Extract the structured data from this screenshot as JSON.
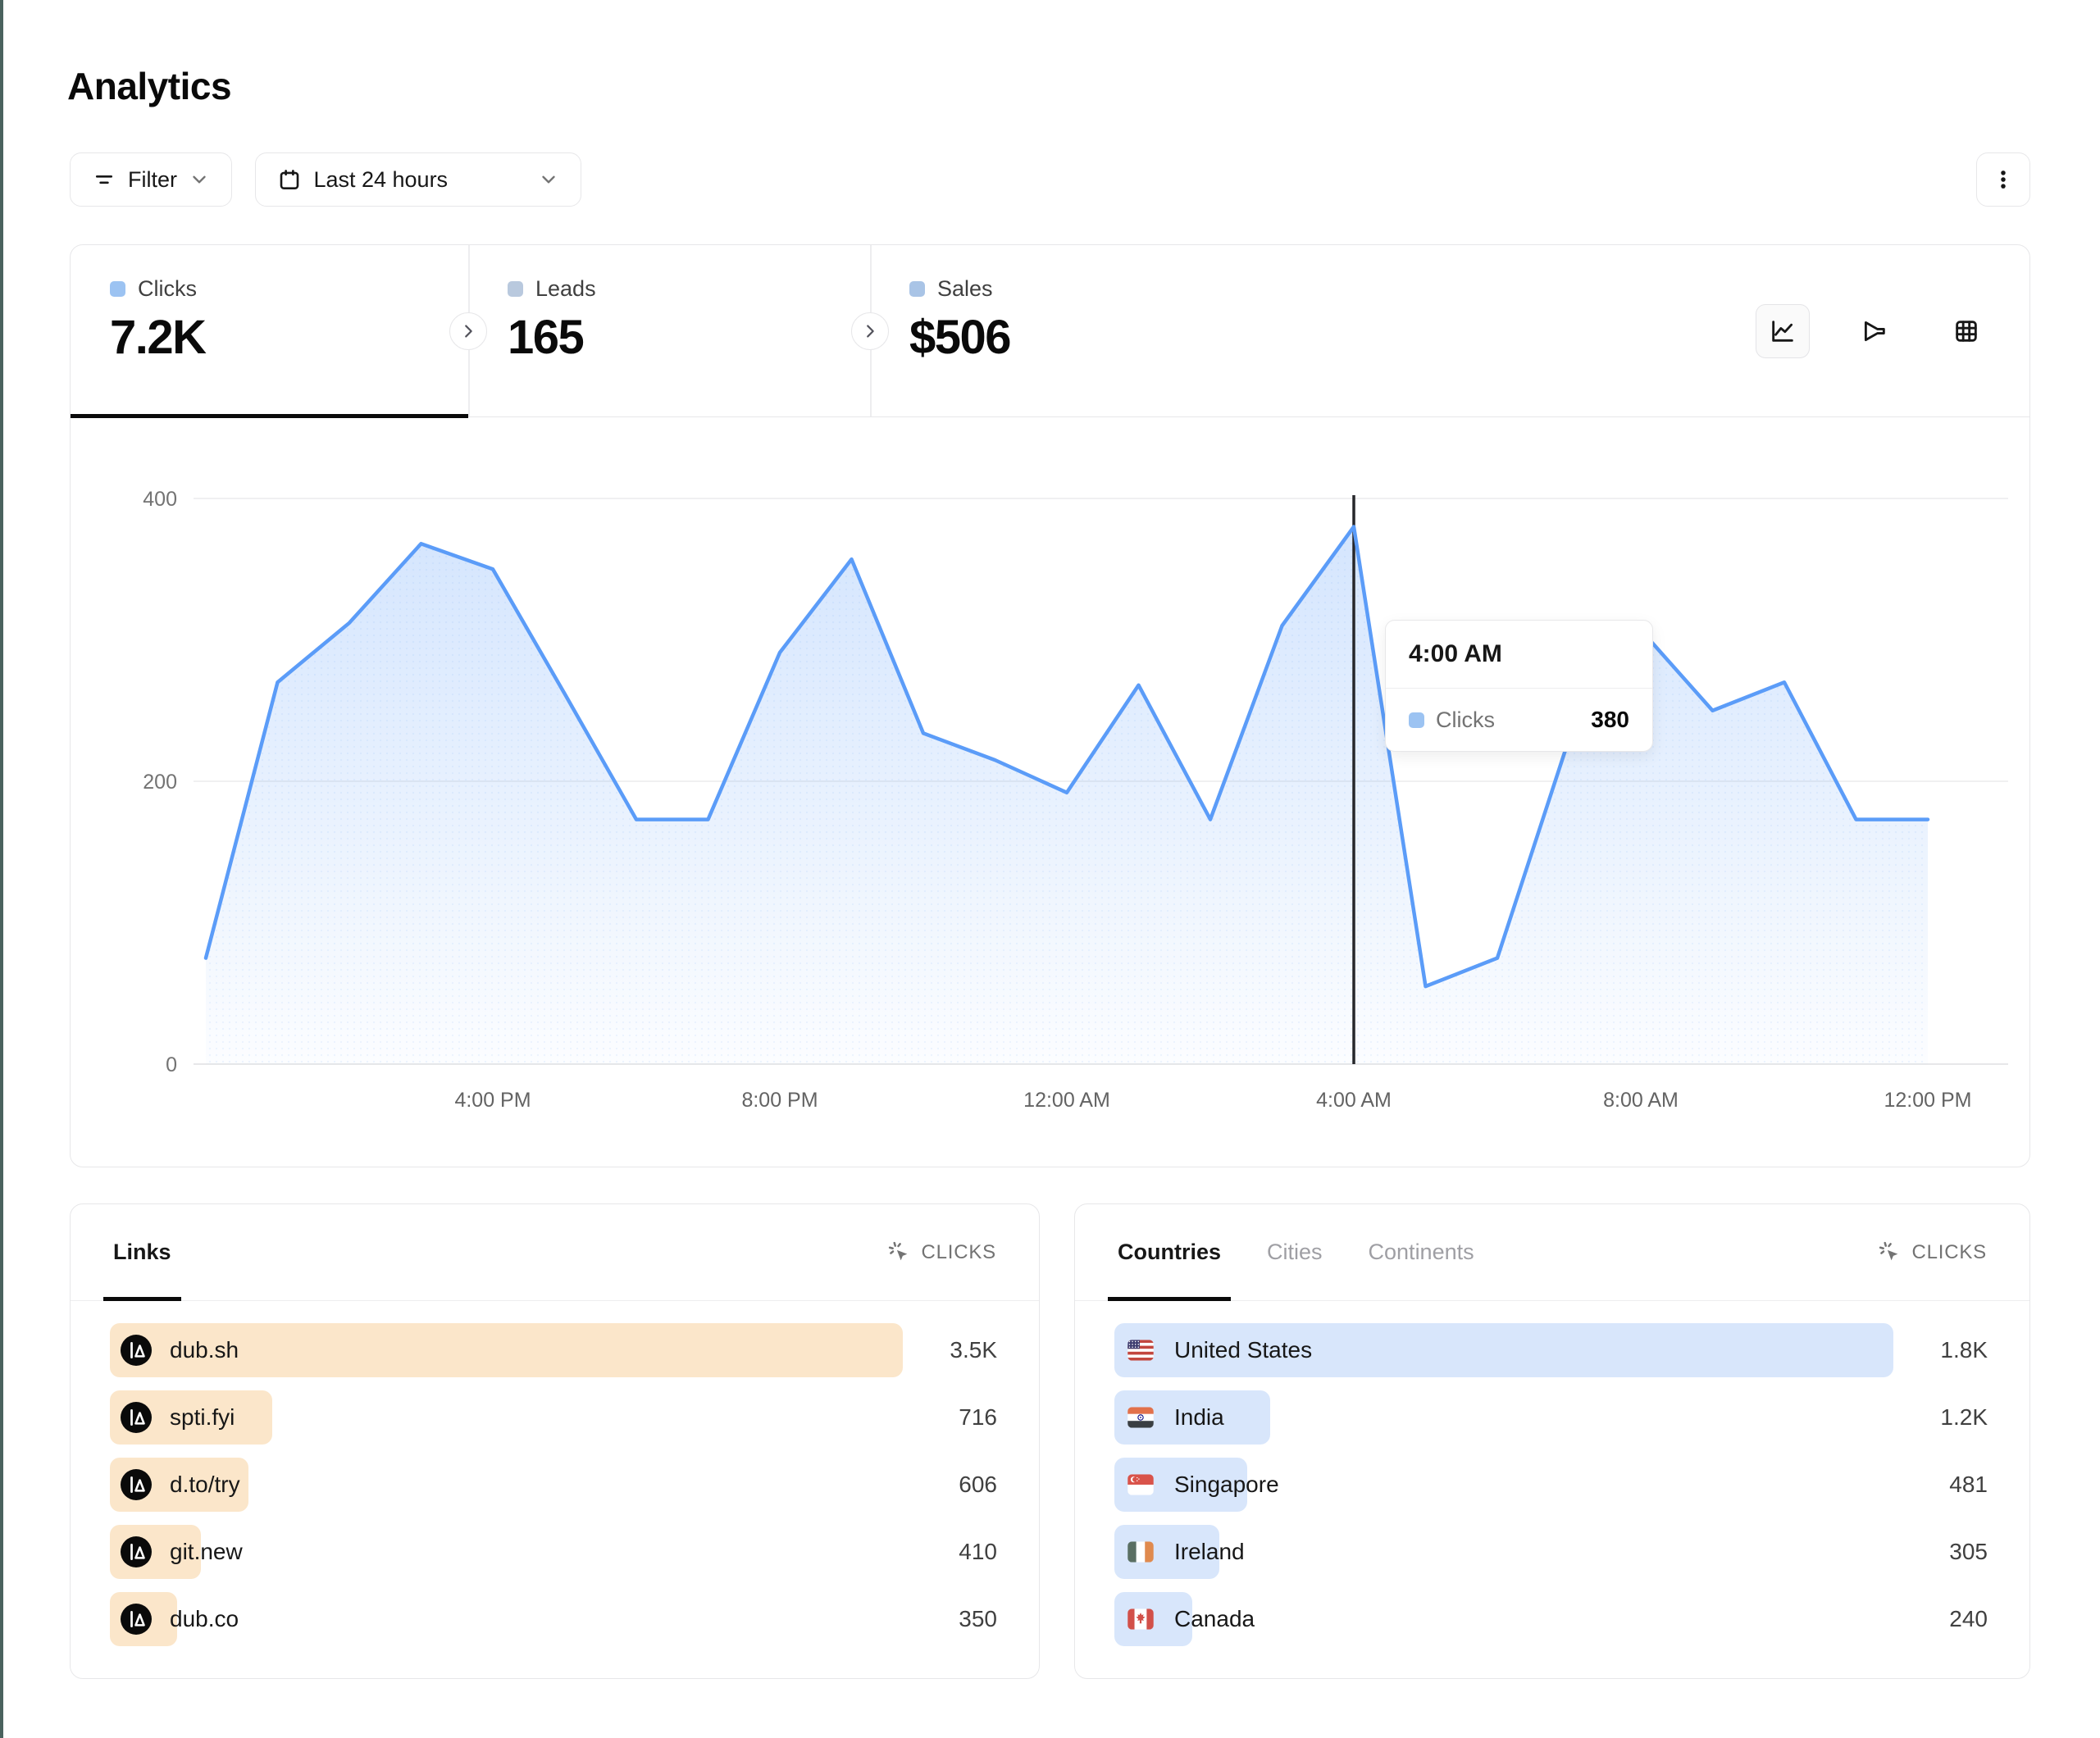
{
  "page": {
    "title": "Analytics"
  },
  "toolbar": {
    "filter_label": "Filter",
    "date_range_label": "Last 24 hours"
  },
  "stats": {
    "tabs": [
      {
        "label": "Clicks",
        "value": "7.2K",
        "active": true,
        "swatch": "#9cc3f2"
      },
      {
        "label": "Leads",
        "value": "165",
        "active": false,
        "swatch": "#b9c9de"
      },
      {
        "label": "Sales",
        "value": "$506",
        "active": false,
        "swatch": "#a9c4e6"
      }
    ]
  },
  "chart_data": {
    "type": "area",
    "series": [
      {
        "name": "Clicks",
        "values": [
          75,
          270,
          312,
          368,
          350,
          262,
          173,
          173,
          291,
          357,
          234,
          215,
          192,
          268,
          173,
          310,
          380,
          55,
          75,
          230,
          307,
          250,
          270,
          173,
          173
        ]
      }
    ],
    "x_ticks": [
      {
        "index": 4,
        "label": "4:00 PM"
      },
      {
        "index": 8,
        "label": "8:00 PM"
      },
      {
        "index": 12,
        "label": "12:00 AM"
      },
      {
        "index": 16,
        "label": "4:00 AM"
      },
      {
        "index": 20,
        "label": "8:00 AM"
      },
      {
        "index": 24,
        "label": "12:00 PM"
      }
    ],
    "yticks": [
      0,
      200,
      400
    ],
    "ylim": [
      0,
      430
    ],
    "grid": "horizontal",
    "line_color": "#5b9cf8",
    "fill_color": "#5b9cf8",
    "hover": {
      "index": 16,
      "time": "4:00 AM",
      "series": "Clicks",
      "value": "380",
      "swatch": "#9cc3f2"
    }
  },
  "links_panel": {
    "tab_label": "Links",
    "metric_label": "CLICKS",
    "bar_color": "#fbe6ca",
    "rows": [
      {
        "label": "dub.sh",
        "value": "3.5K",
        "pct": 100
      },
      {
        "label": "spti.fyi",
        "value": "716",
        "pct": 20.5
      },
      {
        "label": "d.to/try",
        "value": "606",
        "pct": 17.5
      },
      {
        "label": "git.new",
        "value": "410",
        "pct": 11.5
      },
      {
        "label": "dub.co",
        "value": "350",
        "pct": 8.5
      }
    ]
  },
  "countries_panel": {
    "tabs": [
      {
        "label": "Countries",
        "active": true
      },
      {
        "label": "Cities",
        "active": false
      },
      {
        "label": "Continents",
        "active": false
      }
    ],
    "metric_label": "CLICKS",
    "bar_color": "#d8e6fb",
    "rows": [
      {
        "label": "United States",
        "value": "1.8K",
        "pct": 100,
        "flag": "us"
      },
      {
        "label": "India",
        "value": "1.2K",
        "pct": 20,
        "flag": "in"
      },
      {
        "label": "Singapore",
        "value": "481",
        "pct": 17,
        "flag": "sg"
      },
      {
        "label": "Ireland",
        "value": "305",
        "pct": 13.5,
        "flag": "ie"
      },
      {
        "label": "Canada",
        "value": "240",
        "pct": 10,
        "flag": "ca"
      }
    ]
  }
}
